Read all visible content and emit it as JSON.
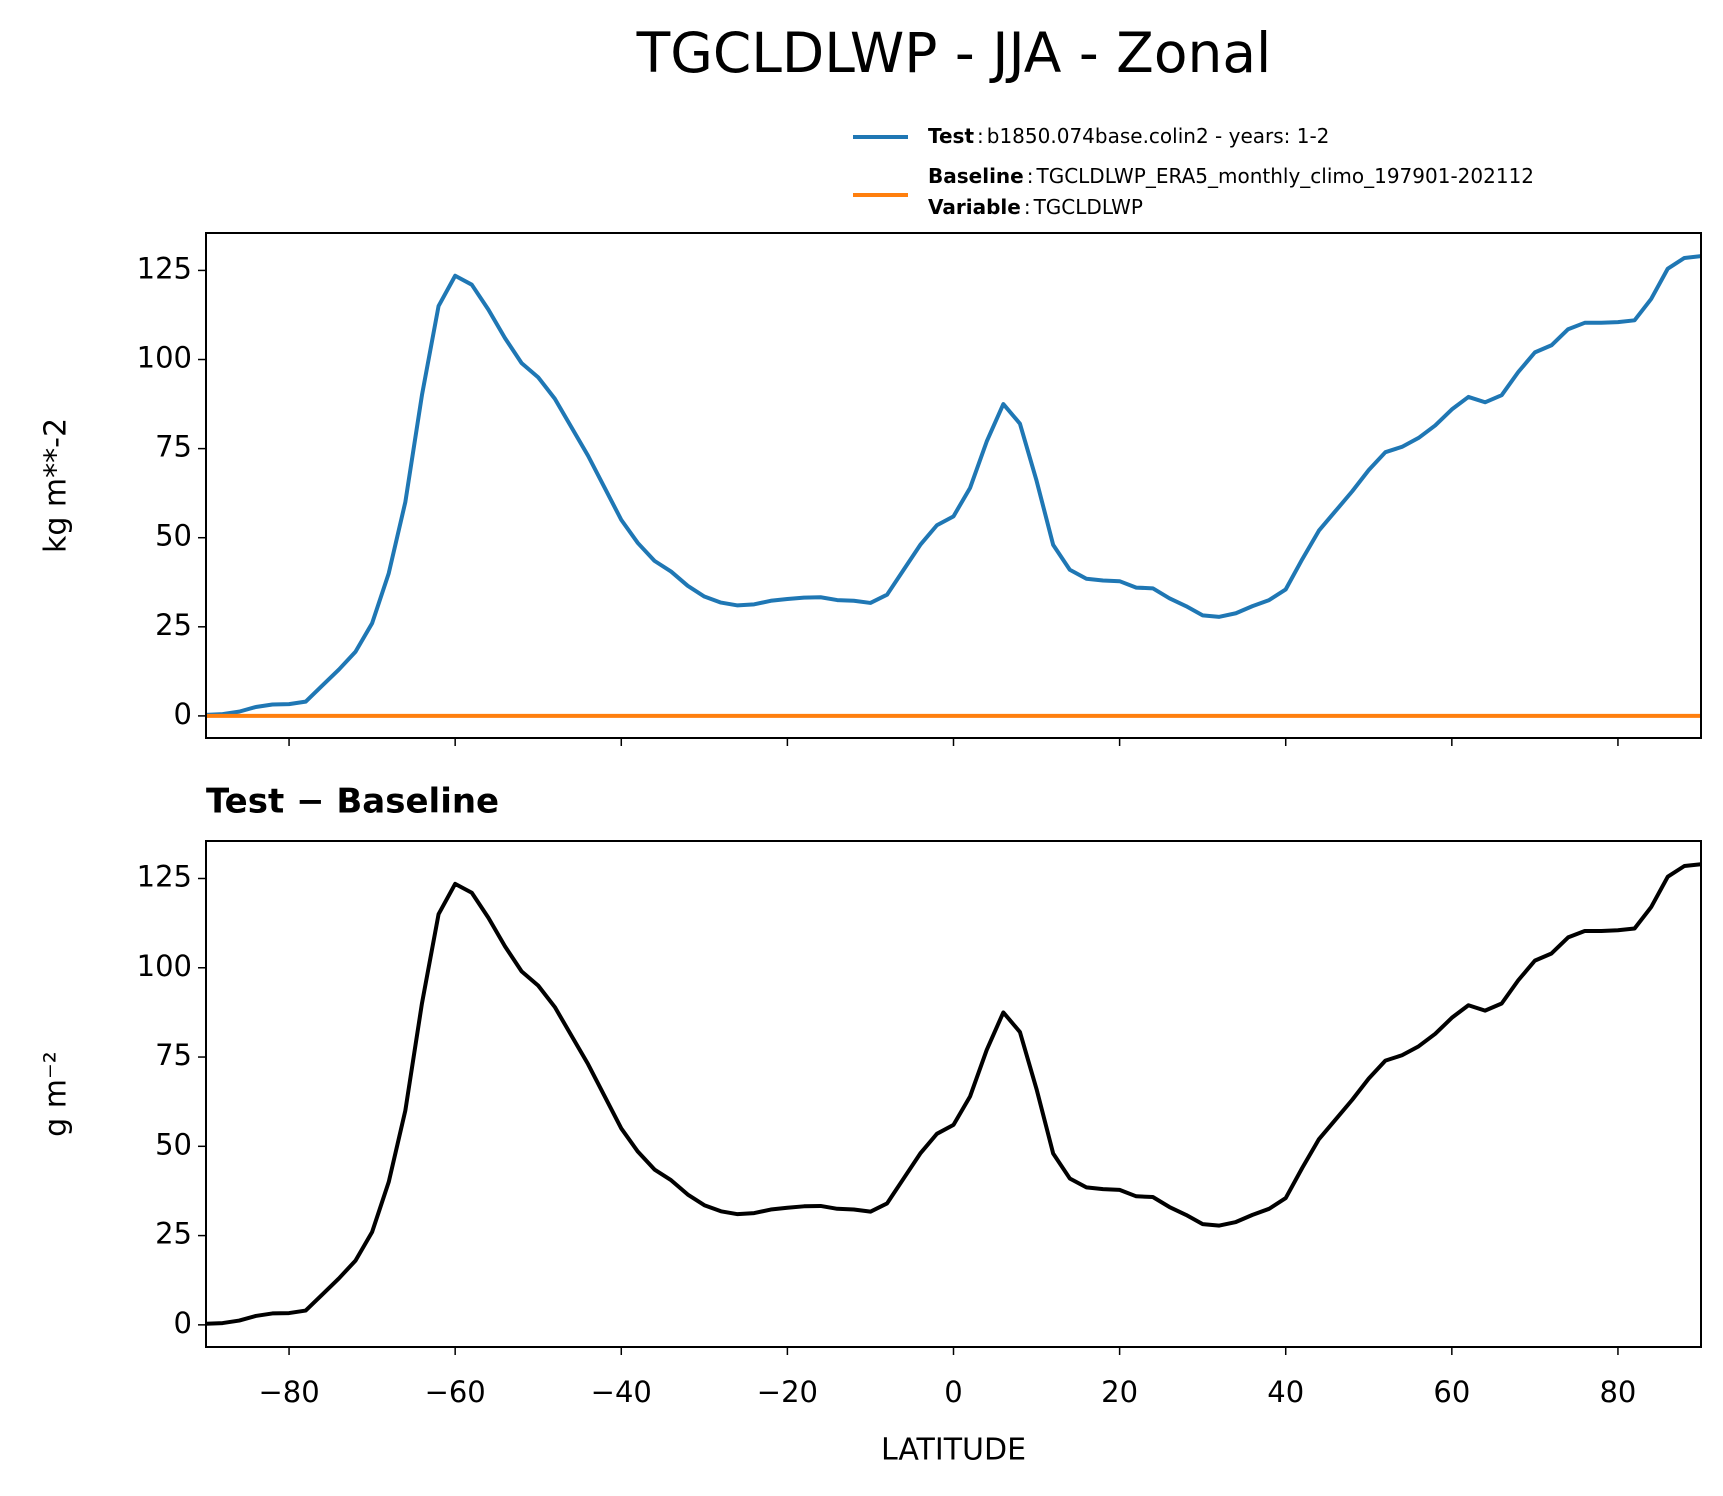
{
  "chart_data": [
    {
      "type": "line",
      "title": "TGCLDLWP - JJA - Zonal",
      "ylabel": "kg m**-2",
      "x": [
        -90,
        -88,
        -86,
        -84,
        -82,
        -80,
        -78,
        -76,
        -74,
        -72,
        -70,
        -68,
        -66,
        -64,
        -62,
        -60,
        -58,
        -56,
        -54,
        -52,
        -50,
        -48,
        -46,
        -44,
        -42,
        -40,
        -38,
        -36,
        -34,
        -32,
        -30,
        -28,
        -26,
        -24,
        -22,
        -20,
        -18,
        -16,
        -14,
        -12,
        -10,
        -8,
        -6,
        -4,
        -2,
        0,
        2,
        4,
        6,
        8,
        10,
        12,
        14,
        16,
        18,
        20,
        22,
        24,
        26,
        28,
        30,
        32,
        34,
        36,
        38,
        40,
        42,
        44,
        46,
        48,
        50,
        52,
        54,
        56,
        58,
        60,
        62,
        64,
        66,
        68,
        70,
        72,
        74,
        76,
        78,
        80,
        82,
        84,
        86,
        88,
        90
      ],
      "series": [
        {
          "name": "Test",
          "description": "b1850.074base.colin2 - years: 1-2",
          "color": "#1f77b4",
          "values": [
            0.3,
            0.5,
            1.2,
            2.5,
            3.2,
            3.3,
            4.0,
            8.5,
            13,
            18,
            26,
            40,
            60,
            90,
            115,
            123.5,
            121,
            114,
            106,
            99,
            95,
            89,
            81,
            73,
            64,
            55,
            48.5,
            43.5,
            40.5,
            36.5,
            33.5,
            31.8,
            31,
            31.3,
            32.3,
            32.8,
            33.2,
            33.3,
            32.5,
            32.3,
            31.7,
            34,
            41,
            48,
            53.5,
            56,
            64,
            77,
            87.5,
            82,
            66,
            48,
            41,
            38.5,
            38,
            37.8,
            36,
            35.8,
            33,
            30.8,
            28.2,
            27.8,
            28.8,
            30.8,
            32.5,
            35.5,
            44,
            52,
            57.5,
            63,
            69,
            74,
            75.5,
            78,
            81.5,
            86,
            89.5,
            88,
            90,
            96.5,
            102,
            104,
            108.5,
            110.3,
            110.3,
            110.5,
            111,
            117,
            125.5,
            128.5,
            129
          ]
        },
        {
          "name": "Baseline",
          "description": "TGCLDLWP_ERA5_monthly_climo_197901-202112",
          "color": "#ff7f0e",
          "values": [
            0,
            0,
            0,
            0,
            0,
            0,
            0,
            0,
            0,
            0,
            0,
            0,
            0,
            0,
            0,
            0,
            0,
            0,
            0,
            0,
            0,
            0,
            0,
            0,
            0,
            0,
            0,
            0,
            0,
            0,
            0,
            0,
            0,
            0,
            0,
            0,
            0,
            0,
            0,
            0,
            0,
            0,
            0,
            0,
            0,
            0,
            0,
            0,
            0,
            0,
            0,
            0,
            0,
            0,
            0,
            0,
            0,
            0,
            0,
            0,
            0,
            0,
            0,
            0,
            0,
            0,
            0,
            0,
            0,
            0,
            0,
            0,
            0,
            0,
            0,
            0,
            0,
            0,
            0,
            0,
            0,
            0,
            0,
            0,
            0,
            0,
            0,
            0,
            0,
            0,
            0
          ]
        }
      ],
      "legend_separator": ":",
      "legend_extra": {
        "name": "Variable",
        "description": "TGCLDLWP"
      },
      "xlim": [
        -90,
        90
      ],
      "ylim": [
        -6.2,
        135.5
      ],
      "xticks": [
        -80,
        -60,
        -40,
        -20,
        0,
        20,
        40,
        60,
        80
      ],
      "xticklabels": false,
      "yticks": [
        0,
        25,
        50,
        75,
        100,
        125
      ]
    },
    {
      "type": "line",
      "title": "Test − Baseline",
      "ylabel": "g m⁻²",
      "xlabel": "LATITUDE",
      "x": [
        -90,
        -88,
        -86,
        -84,
        -82,
        -80,
        -78,
        -76,
        -74,
        -72,
        -70,
        -68,
        -66,
        -64,
        -62,
        -60,
        -58,
        -56,
        -54,
        -52,
        -50,
        -48,
        -46,
        -44,
        -42,
        -40,
        -38,
        -36,
        -34,
        -32,
        -30,
        -28,
        -26,
        -24,
        -22,
        -20,
        -18,
        -16,
        -14,
        -12,
        -10,
        -8,
        -6,
        -4,
        -2,
        0,
        2,
        4,
        6,
        8,
        10,
        12,
        14,
        16,
        18,
        20,
        22,
        24,
        26,
        28,
        30,
        32,
        34,
        36,
        38,
        40,
        42,
        44,
        46,
        48,
        50,
        52,
        54,
        56,
        58,
        60,
        62,
        64,
        66,
        68,
        70,
        72,
        74,
        76,
        78,
        80,
        82,
        84,
        86,
        88,
        90
      ],
      "series": [
        {
          "color": "#000000",
          "values": [
            0.3,
            0.5,
            1.2,
            2.5,
            3.2,
            3.3,
            4.0,
            8.5,
            13,
            18,
            26,
            40,
            60,
            90,
            115,
            123.5,
            121,
            114,
            106,
            99,
            95,
            89,
            81,
            73,
            64,
            55,
            48.5,
            43.5,
            40.5,
            36.5,
            33.5,
            31.8,
            31,
            31.3,
            32.3,
            32.8,
            33.2,
            33.3,
            32.5,
            32.3,
            31.7,
            34,
            41,
            48,
            53.5,
            56,
            64,
            77,
            87.5,
            82,
            66,
            48,
            41,
            38.5,
            38,
            37.8,
            36,
            35.8,
            33,
            30.8,
            28.2,
            27.8,
            28.8,
            30.8,
            32.5,
            35.5,
            44,
            52,
            57.5,
            63,
            69,
            74,
            75.5,
            78,
            81.5,
            86,
            89.5,
            88,
            90,
            96.5,
            102,
            104,
            108.5,
            110.3,
            110.3,
            110.5,
            111,
            117,
            125.5,
            128.5,
            129
          ]
        }
      ],
      "xlim": [
        -90,
        90
      ],
      "ylim": [
        -6.2,
        135.5
      ],
      "xticks": [
        {
          "value": -80,
          "label": "−80"
        },
        {
          "value": -60,
          "label": "−60"
        },
        {
          "value": -40,
          "label": "−40"
        },
        {
          "value": -20,
          "label": "−20"
        },
        0,
        20,
        40,
        60,
        80
      ],
      "xticklabels": true,
      "yticks": [
        0,
        25,
        50,
        75,
        100,
        125
      ]
    }
  ]
}
